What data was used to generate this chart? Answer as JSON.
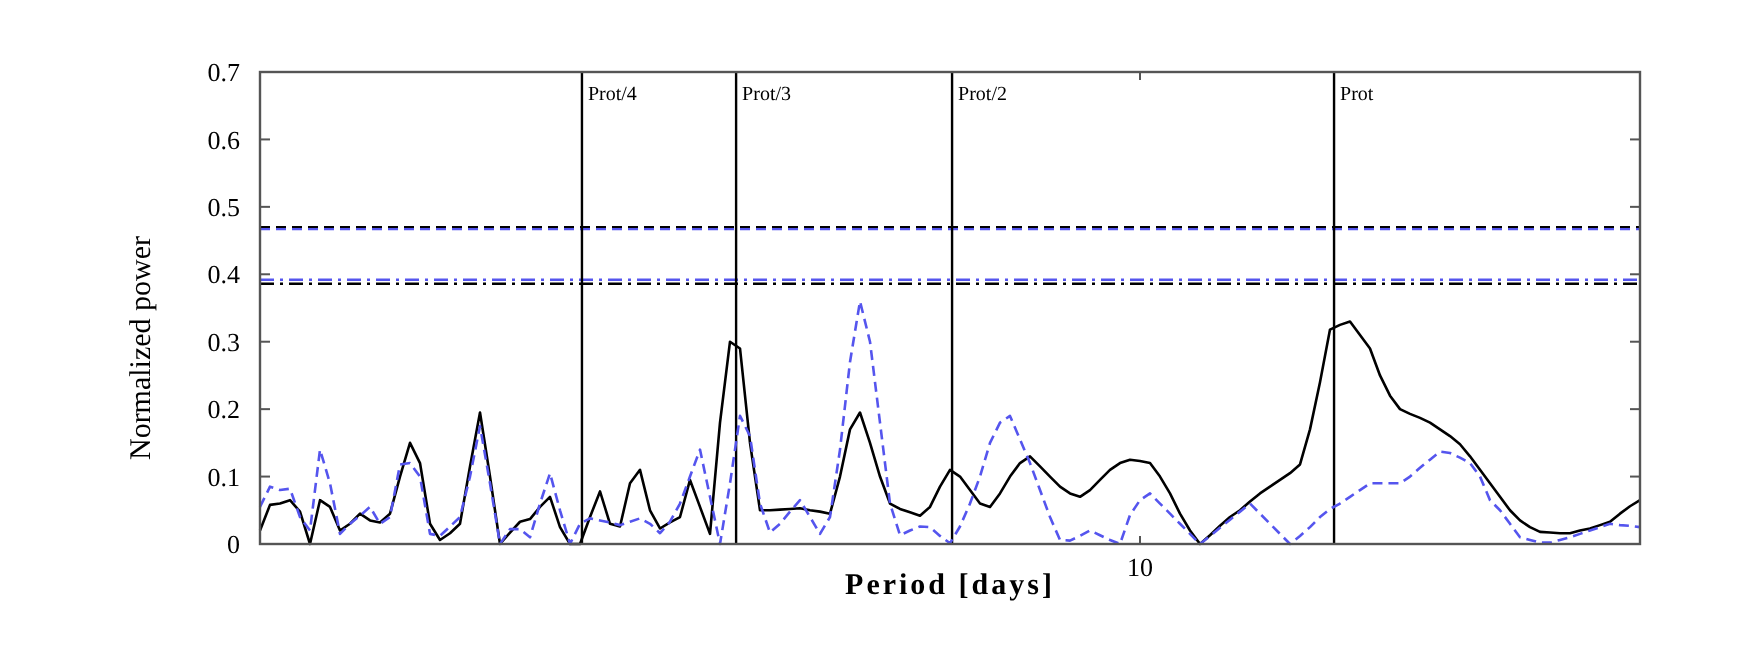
{
  "chart_data": {
    "type": "line",
    "xlabel": "Period [days]",
    "ylabel": "Normalized power",
    "categories": [
      null,
      null,
      null,
      null,
      null,
      null,
      null,
      null,
      null,
      null,
      null,
      null,
      null,
      null,
      null,
      null,
      null,
      null,
      null,
      null,
      null,
      null,
      null,
      null,
      null,
      null,
      null,
      null,
      null,
      null,
      null,
      null,
      null,
      null,
      null,
      null,
      null,
      null,
      null,
      null,
      null,
      null,
      null,
      null,
      null,
      null,
      null,
      null,
      null,
      null,
      null,
      null,
      null,
      null,
      null,
      null,
      null,
      null,
      null,
      null,
      null,
      null,
      null,
      null,
      null,
      null,
      null,
      null,
      null,
      null,
      null,
      null,
      null,
      null,
      null,
      null,
      null,
      null,
      null,
      null,
      null,
      null,
      null,
      null,
      null,
      null,
      null,
      null,
      "10",
      null,
      null,
      null,
      null,
      null,
      null,
      null,
      null,
      null,
      null,
      null,
      null,
      null,
      null,
      null,
      null,
      null,
      null,
      null,
      null,
      null,
      null,
      null,
      null,
      null,
      null,
      null,
      null,
      null,
      null,
      null,
      null,
      null,
      null,
      null,
      null,
      null,
      null,
      null,
      null,
      null,
      null,
      null,
      null,
      null,
      null,
      null,
      null,
      null,
      null
    ],
    "ylim": [
      0,
      0.7
    ],
    "yticks": [
      0,
      0.1,
      0.2,
      0.3,
      0.4,
      0.5,
      0.6,
      0.7
    ],
    "grid": false,
    "series": [
      {
        "color": "#000000",
        "line_style": "solid",
        "values": [
          0.02,
          0.058,
          0.06,
          0.065,
          0.048,
          0,
          0.065,
          0.055,
          0.02,
          0.03,
          0.045,
          0.035,
          0.032,
          0.045,
          0.1,
          0.15,
          0.12,
          0.03,
          0.006,
          0.016,
          0.03,
          0.115,
          0.195,
          0.1,
          0,
          0.017,
          0.033,
          0.037,
          0.055,
          0.07,
          0.025,
          0,
          0,
          0.04,
          0.078,
          0.03,
          0.026,
          0.09,
          0.11,
          0.05,
          0.023,
          0.032,
          0.04,
          0.095,
          0.055,
          0.015,
          0.18,
          0.3,
          0.29,
          0.15,
          0.05,
          0.05,
          0.051,
          0.052,
          0.053,
          0.05,
          0.048,
          0.045,
          0.1,
          0.17,
          0.195,
          0.15,
          0.1,
          0.06,
          0.052,
          0.047,
          0.042,
          0.055,
          0.085,
          0.11,
          0.1,
          0.08,
          0.06,
          0.055,
          0.075,
          0.1,
          0.12,
          0.13,
          0.115,
          0.1,
          0.085,
          0.075,
          0.07,
          0.08,
          0.095,
          0.11,
          0.12,
          0.125,
          0.123,
          0.12,
          0.1,
          0.075,
          0.045,
          0.02,
          0,
          0.013,
          0.027,
          0.04,
          0.05,
          0.063,
          0.075,
          0.085,
          0.095,
          0.105,
          0.118,
          0.17,
          0.24,
          0.318,
          0.325,
          0.33,
          0.31,
          0.29,
          0.25,
          0.22,
          0.2,
          0.193,
          0.187,
          0.18,
          0.17,
          0.16,
          0.148,
          0.13,
          0.11,
          0.09,
          0.07,
          0.05,
          0.035,
          0.025,
          0.018,
          0.017,
          0.016,
          0.016,
          0.02,
          0.023,
          0.028,
          0.033,
          0.045,
          0.056,
          0.065
        ]
      },
      {
        "color": "#5555ee",
        "line_style": "dashed",
        "values": [
          0.055,
          0.085,
          0.08,
          0.082,
          0.04,
          0.02,
          0.14,
          0.09,
          0.015,
          0.03,
          0.042,
          0.055,
          0.03,
          0.04,
          0.118,
          0.12,
          0.1,
          0.015,
          0.012,
          0.026,
          0.04,
          0.1,
          0.175,
          0.09,
          0,
          0.022,
          0.022,
          0.01,
          0.06,
          0.105,
          0.05,
          0,
          0.03,
          0.038,
          0.035,
          0.032,
          0.028,
          0.033,
          0.038,
          0.03,
          0.016,
          0.033,
          0.06,
          0.1,
          0.14,
          0.07,
          0,
          0.09,
          0.19,
          0.16,
          0.06,
          0.017,
          0.03,
          0.048,
          0.065,
          0.04,
          0.015,
          0.04,
          0.14,
          0.27,
          0.36,
          0.3,
          0.18,
          0.06,
          0.013,
          0.02,
          0.026,
          0.025,
          0.012,
          0.001,
          0.026,
          0.06,
          0.1,
          0.15,
          0.18,
          0.19,
          0.155,
          0.12,
          0.08,
          0.04,
          0.006,
          0.005,
          0.012,
          0.02,
          0.013,
          0.006,
          0,
          0.043,
          0.065,
          0.075,
          0.06,
          0.045,
          0.03,
          0.015,
          0,
          0.012,
          0.024,
          0.036,
          0.048,
          0.06,
          0.045,
          0.03,
          0.015,
          0,
          0.012,
          0.025,
          0.04,
          0.052,
          0.06,
          0.07,
          0.08,
          0.09,
          0.09,
          0.09,
          0.09,
          0.1,
          0.113,
          0.125,
          0.137,
          0.135,
          0.128,
          0.12,
          0.1,
          0.065,
          0.05,
          0.03,
          0.01,
          0.006,
          0.002,
          0.002,
          0.006,
          0.01,
          0.015,
          0.02,
          0.025,
          0.03,
          0.028,
          0.027,
          0.025
        ]
      }
    ],
    "ref_lines": [
      {
        "axis": "y",
        "value": 0.47,
        "color": "#000000",
        "line_style": "dashed"
      },
      {
        "axis": "y",
        "value": 0.467,
        "color": "#5555ee",
        "line_style": "dashed"
      },
      {
        "axis": "y",
        "value": 0.392,
        "color": "#5555ee",
        "line_style": "dashdot"
      },
      {
        "axis": "y",
        "value": 0.386,
        "color": "#000000",
        "line_style": "dashdot"
      },
      {
        "axis": "x",
        "label": "Prot/4",
        "color": "#000000",
        "line_style": "solid"
      },
      {
        "axis": "x",
        "label": "Prot/3",
        "color": "#000000",
        "line_style": "solid"
      },
      {
        "axis": "x",
        "label": "Prot/2",
        "color": "#000000",
        "line_style": "solid"
      },
      {
        "axis": "x",
        "label": "Prot",
        "color": "#000000",
        "line_style": "solid"
      }
    ]
  }
}
